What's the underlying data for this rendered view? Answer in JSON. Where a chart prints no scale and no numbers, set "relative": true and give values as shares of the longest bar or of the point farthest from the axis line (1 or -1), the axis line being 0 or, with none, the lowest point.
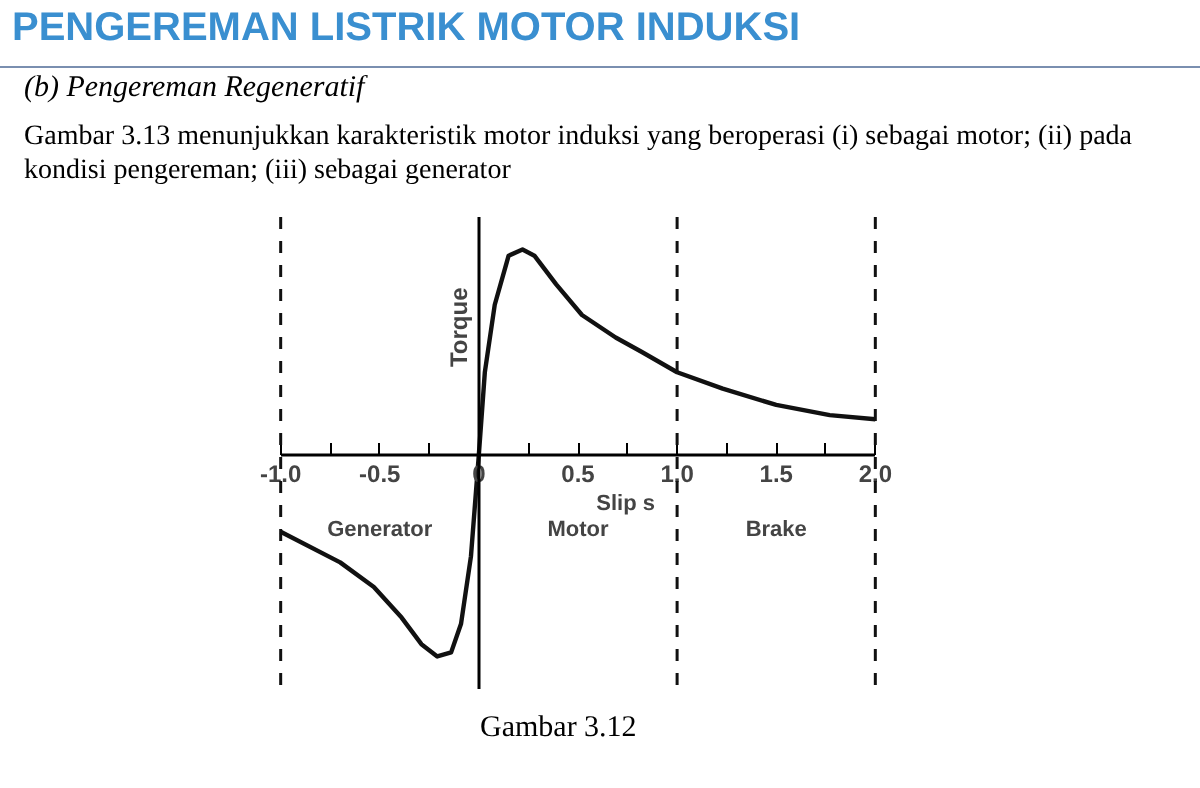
{
  "chart_data": {
    "type": "line",
    "title": "PENGEREMAN LISTRIK MOTOR INDUKSI",
    "subtitle": "(b) Pengereman Regeneratif",
    "relative": true,
    "xlabel": "Slip s",
    "ylabel": "Torque",
    "grid": false,
    "marker": "none",
    "line_style": "solid",
    "xlim": [
      -1.0,
      2.0
    ],
    "xticks": [
      {
        "value": -1.0,
        "label": "-1.0"
      },
      {
        "value": -0.75,
        "label": null
      },
      {
        "value": -0.5,
        "label": "-0.5"
      },
      {
        "value": -0.25,
        "label": null
      },
      0,
      {
        "value": 0.25,
        "label": null
      },
      {
        "value": 0.5,
        "label": "0.5"
      },
      {
        "value": 0.75,
        "label": null
      },
      {
        "value": 1.0,
        "label": "1.0"
      },
      {
        "value": 1.25,
        "label": null
      },
      {
        "value": 1.5,
        "label": "1.5"
      },
      {
        "value": 1.75,
        "label": null
      },
      {
        "value": 2.0,
        "label": "2.0"
      }
    ],
    "series": [
      {
        "color": "#111111",
        "x": [
          -1.0,
          -0.7,
          -0.53,
          -0.39,
          -0.29,
          -0.21,
          -0.14,
          -0.09,
          -0.04,
          0,
          0.03,
          0.08,
          0.15,
          0.22,
          0.28,
          0.39,
          0.52,
          0.69,
          0.82,
          1.0,
          1.23,
          1.5,
          1.77,
          2.0
        ],
        "values": [
          -0.38,
          -0.53,
          -0.65,
          -0.8,
          -0.93,
          -0.99,
          -0.97,
          -0.83,
          -0.5,
          0,
          0.4,
          0.73,
          0.97,
          1.0,
          0.97,
          0.83,
          0.68,
          0.57,
          0.5,
          0.4,
          0.32,
          0.24,
          0.19,
          0.17
        ]
      }
    ],
    "ref_lines": [
      {
        "axis": "x",
        "value": -1.0,
        "line_style": "dashed",
        "color": "#111111"
      },
      {
        "axis": "x",
        "value": 1.0,
        "line_style": "dashed",
        "color": "#111111"
      },
      {
        "axis": "x",
        "value": 2.0,
        "line_style": "dashed",
        "color": "#111111"
      }
    ],
    "annotations": [
      "Gambar 3.13 menunjukkan karakteristik motor induksi yang beroperasi (i) sebagai motor; (ii) pada kondisi pengereman; (iii) sebagai generator",
      "Generator",
      "Motor",
      "Brake",
      "Gambar 3.12"
    ]
  }
}
